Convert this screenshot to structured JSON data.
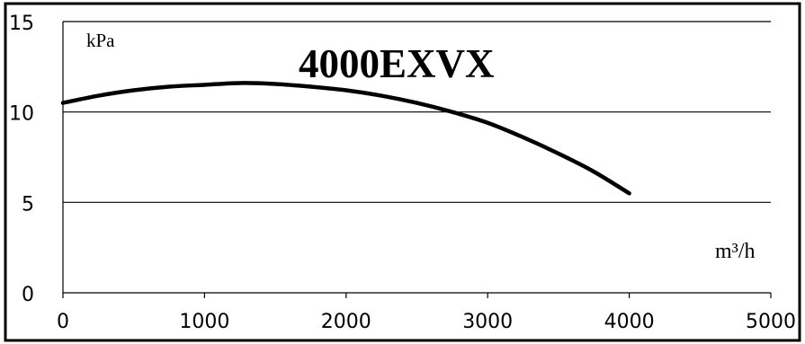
{
  "chart_data": {
    "type": "line",
    "title": "4000EXVX",
    "ylabel": "kPa",
    "xlabel": "m³/h",
    "xlim": [
      0,
      5000
    ],
    "ylim": [
      0,
      15
    ],
    "x_ticks": [
      "0",
      "1000",
      "2000",
      "3000",
      "4000",
      "5000"
    ],
    "y_ticks": [
      "0",
      "5",
      "10",
      "15"
    ],
    "grid": "horizontal",
    "series": [
      {
        "x": [
          0,
          250,
          500,
          750,
          1000,
          1250,
          1500,
          1750,
          2000,
          2250,
          2500,
          2750,
          3000,
          3250,
          3500,
          3750,
          4000
        ],
        "y": [
          10.5,
          10.9,
          11.2,
          11.4,
          11.5,
          11.6,
          11.55,
          11.4,
          11.2,
          10.9,
          10.5,
          10.0,
          9.4,
          8.6,
          7.7,
          6.7,
          5.5
        ]
      }
    ]
  },
  "style": {
    "line_color": "#000000",
    "grid_color": "#000000"
  }
}
